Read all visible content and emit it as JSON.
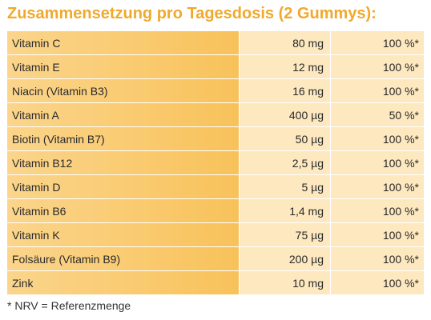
{
  "title": "Zusammensetzung pro Tagesdosis (2 Gummys):",
  "rows": [
    {
      "name": "Vitamin C",
      "amount": "80 mg",
      "nrv": "100 %*"
    },
    {
      "name": "Vitamin E",
      "amount": "12 mg",
      "nrv": "100 %*"
    },
    {
      "name": "Niacin (Vitamin B3)",
      "amount": "16 mg",
      "nrv": "100 %*"
    },
    {
      "name": "Vitamin A",
      "amount": "400 µg",
      "nrv": "50 %*"
    },
    {
      "name": "Biotin (Vitamin B7)",
      "amount": "50 µg",
      "nrv": "100 %*"
    },
    {
      "name": "Vitamin B12",
      "amount": "2,5 µg",
      "nrv": "100 %*"
    },
    {
      "name": "Vitamin D",
      "amount": "5 µg",
      "nrv": "100 %*"
    },
    {
      "name": "Vitamin B6",
      "amount": "1,4 mg",
      "nrv": "100 %*"
    },
    {
      "name": "Vitamin K",
      "amount": "75 µg",
      "nrv": "100 %*"
    },
    {
      "name": "Folsäure (Vitamin B9)",
      "amount": "200 µg",
      "nrv": "100 %*"
    },
    {
      "name": "Zink",
      "amount": "10 mg",
      "nrv": "100 %*"
    }
  ],
  "footnote": "* NRV = Referenzmenge",
  "colors": {
    "title": "#f0a92c",
    "name_column": "#f8c25a",
    "value_columns": "#fde8bf"
  }
}
